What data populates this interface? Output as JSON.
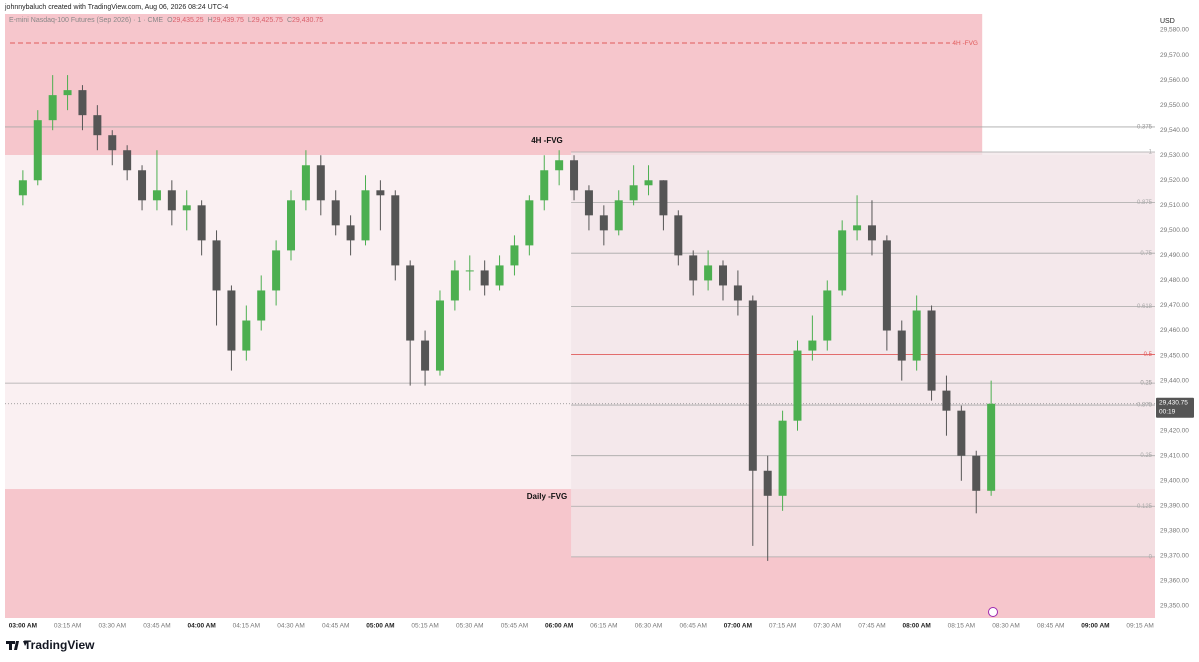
{
  "header": {
    "credit": "johnnybaluch created with TradingView.com, Aug 06, 2026 08:24 UTC-4",
    "symbol": "E-mini Nasdaq-100 Futures (Sep 2026) · 1 · CME",
    "ohlc": [
      {
        "key": "O",
        "value": "29,435.25"
      },
      {
        "key": "H",
        "value": "29,439.75"
      },
      {
        "key": "L",
        "value": "29,425.75"
      },
      {
        "key": "C",
        "value": "29,430.75"
      }
    ]
  },
  "footer": {
    "brand": "TradingView"
  },
  "chart_data": {
    "type": "candlestick",
    "currency": "USD",
    "up_color": "#4caf50",
    "down_color": "#555555",
    "xlim": [
      "02:54 AM",
      "09:20 AM"
    ],
    "xticks": [
      "03:00 AM",
      "03:15 AM",
      "03:30 AM",
      "03:45 AM",
      "04:00 AM",
      "04:15 AM",
      "04:30 AM",
      "04:45 AM",
      "05:00 AM",
      "05:15 AM",
      "05:30 AM",
      "05:45 AM",
      "06:00 AM",
      "06:15 AM",
      "06:30 AM",
      "06:45 AM",
      "07:00 AM",
      "07:15 AM",
      "07:30 AM",
      "07:45 AM",
      "08:00 AM",
      "08:15 AM",
      "08:30 AM",
      "08:45 AM",
      "09:00 AM",
      "09:15 AM"
    ],
    "ylim": [
      29345.2,
      29586.4
    ],
    "yticks": [
      {
        "value": 29350,
        "label": "29,350.00"
      },
      {
        "value": 29360,
        "label": "29,360.00"
      },
      {
        "value": 29370,
        "label": "29,370.00"
      },
      {
        "value": 29380,
        "label": "29,380.00"
      },
      {
        "value": 29390,
        "label": "29,390.00"
      },
      {
        "value": 29400,
        "label": "29,400.00"
      },
      {
        "value": 29410,
        "label": "29,410.00"
      },
      {
        "value": 29420,
        "label": "29,420.00"
      },
      {
        "value": 29440,
        "label": "29,440.00"
      },
      {
        "value": 29450,
        "label": "29,450.00"
      },
      {
        "value": 29460,
        "label": "29,460.00"
      },
      {
        "value": 29470,
        "label": "29,470.00"
      },
      {
        "value": 29480,
        "label": "29,480.00"
      },
      {
        "value": 29490,
        "label": "29,490.00"
      },
      {
        "value": 29500,
        "label": "29,500.00"
      },
      {
        "value": 29510,
        "label": "29,510.00"
      },
      {
        "value": 29520,
        "label": "29,520.00"
      },
      {
        "value": 29530,
        "label": "29,530.00"
      },
      {
        "value": 29540,
        "label": "29,540.00"
      },
      {
        "value": 29550,
        "label": "29,550.00"
      },
      {
        "value": 29560,
        "label": "29,560.00"
      },
      {
        "value": 29570,
        "label": "29,570.00"
      },
      {
        "value": 29580,
        "label": "29,580.00"
      }
    ],
    "x": [
      "03:00 AM",
      "03:05 AM",
      "03:10 AM",
      "03:15 AM",
      "03:20 AM",
      "03:25 AM",
      "03:30 AM",
      "03:35 AM",
      "03:40 AM",
      "03:45 AM",
      "03:50 AM",
      "03:55 AM",
      "04:00 AM",
      "04:05 AM",
      "04:10 AM",
      "04:15 AM",
      "04:20 AM",
      "04:25 AM",
      "04:30 AM",
      "04:35 AM",
      "04:40 AM",
      "04:45 AM",
      "04:50 AM",
      "04:55 AM",
      "05:00 AM",
      "05:05 AM",
      "05:10 AM",
      "05:15 AM",
      "05:20 AM",
      "05:25 AM",
      "05:30 AM",
      "05:35 AM",
      "05:40 AM",
      "05:45 AM",
      "05:50 AM",
      "05:55 AM",
      "06:00 AM",
      "06:05 AM",
      "06:10 AM",
      "06:15 AM",
      "06:20 AM",
      "06:25 AM",
      "06:30 AM",
      "06:35 AM",
      "06:40 AM",
      "06:45 AM",
      "06:50 AM",
      "06:55 AM",
      "07:00 AM",
      "07:05 AM",
      "07:10 AM",
      "07:15 AM",
      "07:20 AM",
      "07:25 AM",
      "07:30 AM",
      "07:35 AM",
      "07:40 AM",
      "07:45 AM",
      "07:50 AM",
      "07:55 AM",
      "08:00 AM",
      "08:05 AM",
      "08:10 AM",
      "08:15 AM",
      "08:20 AM",
      "08:25 AM"
    ],
    "open": [
      29514,
      29520,
      29544,
      29554,
      29556,
      29546,
      29538,
      29532,
      29524,
      29512,
      29516,
      29508,
      29510,
      29496,
      29476,
      29452,
      29464,
      29476,
      29492,
      29512,
      29526,
      29512,
      29502,
      29496,
      29516,
      29514,
      29486,
      29456,
      29444,
      29472,
      29484,
      29484,
      29478,
      29486,
      29494,
      29512,
      29524,
      29528,
      29516,
      29506,
      29500,
      29512,
      29518,
      29520,
      29506,
      29490,
      29480,
      29486,
      29478,
      29472,
      29404,
      29394,
      29424,
      29452,
      29456,
      29476,
      29500,
      29502,
      29496,
      29460,
      29448,
      29468,
      29436,
      29428,
      29410,
      29396
    ],
    "high": [
      29524,
      29548,
      29562,
      29562,
      29558,
      29550,
      29540,
      29534,
      29526,
      29532,
      29520,
      29516,
      29512,
      29500,
      29478,
      29470,
      29482,
      29496,
      29516,
      29532,
      29530,
      29516,
      29506,
      29522,
      29520,
      29516,
      29488,
      29460,
      29476,
      29488,
      29490,
      29488,
      29490,
      29498,
      29514,
      29530,
      29532,
      29530,
      29518,
      29510,
      29516,
      29526,
      29526,
      29520,
      29508,
      29492,
      29492,
      29488,
      29484,
      29474,
      29410,
      29428,
      29456,
      29466,
      29480,
      29504,
      29514,
      29512,
      29498,
      29464,
      29474,
      29470,
      29442,
      29430,
      29412,
      29440
    ],
    "low": [
      29510,
      29518,
      29540,
      29548,
      29540,
      29532,
      29526,
      29520,
      29508,
      29508,
      29502,
      29500,
      29490,
      29462,
      29444,
      29448,
      29460,
      29470,
      29488,
      29508,
      29506,
      29498,
      29490,
      29494,
      29500,
      29480,
      29438,
      29438,
      29442,
      29468,
      29476,
      29474,
      29476,
      29482,
      29490,
      29508,
      29518,
      29512,
      29500,
      29494,
      29498,
      29510,
      29514,
      29500,
      29486,
      29474,
      29476,
      29472,
      29466,
      29374,
      29368,
      29388,
      29420,
      29448,
      29452,
      29474,
      29496,
      29490,
      29452,
      29440,
      29444,
      29432,
      29418,
      29400,
      29387,
      29394
    ],
    "close": [
      29520,
      29544,
      29554,
      29556,
      29546,
      29538,
      29532,
      29524,
      29512,
      29516,
      29508,
      29510,
      29496,
      29476,
      29452,
      29464,
      29476,
      29492,
      29512,
      29526,
      29512,
      29502,
      29496,
      29516,
      29514,
      29486,
      29456,
      29444,
      29472,
      29484,
      29484,
      29478,
      29486,
      29494,
      29512,
      29524,
      29528,
      29516,
      29506,
      29500,
      29512,
      29518,
      29520,
      29506,
      29490,
      29480,
      29486,
      29478,
      29472,
      29404,
      29394,
      29424,
      29452,
      29456,
      29476,
      29500,
      29502,
      29496,
      29460,
      29448,
      29468,
      29436,
      29428,
      29410,
      29396,
      29430.75
    ],
    "zones": [
      {
        "label": "4H -FVG",
        "top": 29586.4,
        "bottom": 29530.1,
        "x_start": "02:54 AM",
        "x_end": "08:22 AM",
        "color": "#f6c6cc"
      },
      {
        "label": "Daily -FVG",
        "top": 29396.7,
        "bottom": 29345.2,
        "x_start": "02:54 AM",
        "x_end": "09:20 AM",
        "color": "#f6c6cc"
      }
    ],
    "mid_color": "#faf0f2",
    "dashed_level": {
      "label": "4H -FVG",
      "price": 29574.8,
      "color": "#e05a5a"
    },
    "fib": {
      "high": 29531.3,
      "low": 29369.6,
      "x_start": "06:04 AM",
      "fill": "#f1e6e8",
      "levels": [
        1,
        0.875,
        0.75,
        0.618,
        0.5,
        0.375,
        0.25,
        0.125,
        0
      ],
      "highlight": 0.5,
      "highlight_color": "#e05a5a"
    },
    "extra_levels": [
      {
        "level": 0.375,
        "price": 29541.3
      },
      {
        "level": 0.25,
        "price": 29439.0
      }
    ],
    "last_price": {
      "value": 29430.75,
      "label": "29,430.75",
      "countdown": "00:19"
    }
  }
}
